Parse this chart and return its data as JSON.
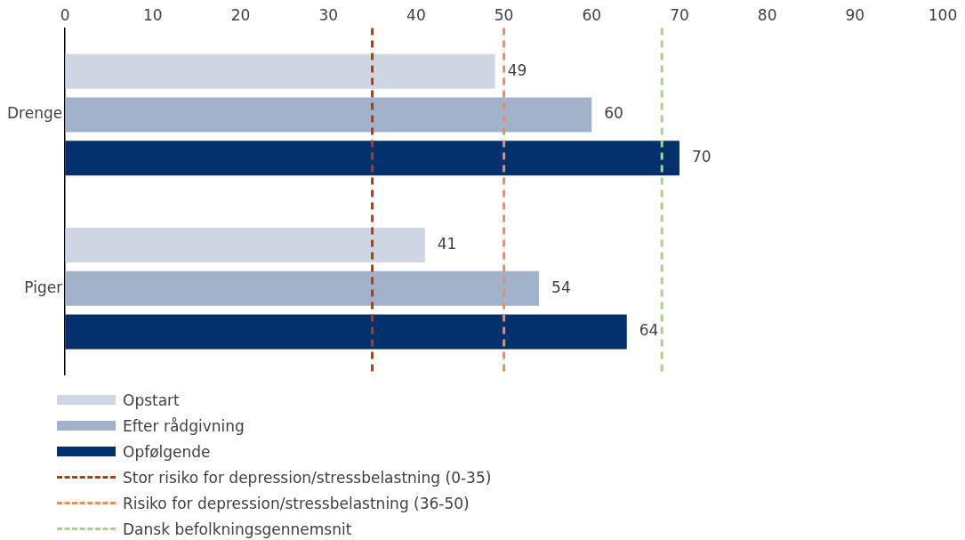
{
  "chart_data": {
    "type": "bar",
    "orientation": "horizontal",
    "categories": [
      "Drenge",
      "Piger"
    ],
    "series": [
      {
        "name": "Opstart",
        "color": "#cfd6e3",
        "values": [
          49,
          41
        ]
      },
      {
        "name": "Efter rådgivning",
        "color": "#a2b2cb",
        "values": [
          60,
          54
        ]
      },
      {
        "name": "Opfølgende",
        "color": "#03316c",
        "values": [
          70,
          64
        ]
      }
    ],
    "xlim": [
      0,
      100
    ],
    "xticks": [
      0,
      10,
      20,
      30,
      40,
      50,
      60,
      70,
      80,
      90,
      100
    ],
    "ref_lines": [
      {
        "axis": "x",
        "value": 35,
        "label": "Stor risiko for depression/stressbelastning (0-35)",
        "color": "#b33b10",
        "line_style": "dashed"
      },
      {
        "axis": "x",
        "value": 50,
        "label": "Risiko for depression/stressbelastning (36-50)",
        "color": "#f08a60",
        "line_style": "dashed"
      },
      {
        "axis": "x",
        "value": 68,
        "label": "Dansk befolkningsgennemsnit",
        "color": "#a9d08e",
        "line_style": "dashed"
      }
    ],
    "data_labels": true,
    "grid": false,
    "legend": "bottom left"
  }
}
